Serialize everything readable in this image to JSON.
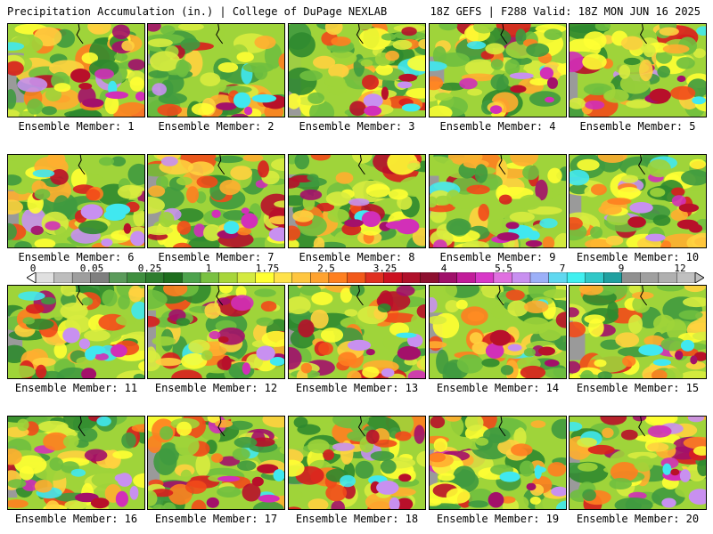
{
  "header": {
    "title": "Precipitation Accumulation (in.) | College of DuPage NEXLAB",
    "run_info": "18Z GEFS | F288 Valid: 18Z MON JUN 16 2025"
  },
  "panels": [
    {
      "label": "Ensemble Member: 1"
    },
    {
      "label": "Ensemble Member: 2"
    },
    {
      "label": "Ensemble Member: 3"
    },
    {
      "label": "Ensemble Member: 4"
    },
    {
      "label": "Ensemble Member: 5"
    },
    {
      "label": "Ensemble Member: 6"
    },
    {
      "label": "Ensemble Member: 7"
    },
    {
      "label": "Ensemble Member: 8"
    },
    {
      "label": "Ensemble Member: 9"
    },
    {
      "label": "Ensemble Member: 10"
    },
    {
      "label": "Ensemble Member: 11"
    },
    {
      "label": "Ensemble Member: 12"
    },
    {
      "label": "Ensemble Member: 13"
    },
    {
      "label": "Ensemble Member: 14"
    },
    {
      "label": "Ensemble Member: 15"
    },
    {
      "label": "Ensemble Member: 16"
    },
    {
      "label": "Ensemble Member: 17"
    },
    {
      "label": "Ensemble Member: 18"
    },
    {
      "label": "Ensemble Member: 19"
    },
    {
      "label": "Ensemble Member: 20"
    }
  ],
  "colorbar": {
    "labels": [
      "0",
      "0.05",
      "0.25",
      "1",
      "1.75",
      "2.5",
      "3.25",
      "4",
      "5.5",
      "7",
      "9",
      "12"
    ],
    "colors": [
      "#e0e0e0",
      "#bdbdbd",
      "#9e9e9e",
      "#7f7f7f",
      "#5b9b5b",
      "#3f8f3f",
      "#2e7d2e",
      "#1e6e1e",
      "#4da34d",
      "#7ac142",
      "#a8d63b",
      "#d4ea40",
      "#ffff33",
      "#ffe24a",
      "#ffc640",
      "#ffa330",
      "#ff8020",
      "#f25a1a",
      "#e03020",
      "#cc1020",
      "#b0102a",
      "#8e1030",
      "#a0106a",
      "#c21c9a",
      "#d838c8",
      "#e070e0",
      "#c890f0",
      "#9cb0f8",
      "#60d8f0",
      "#40f0f0",
      "#30c8c8",
      "#20a0a0",
      "#909090",
      "#a0a0a0",
      "#b0b0b0",
      "#c0c0c0"
    ]
  }
}
